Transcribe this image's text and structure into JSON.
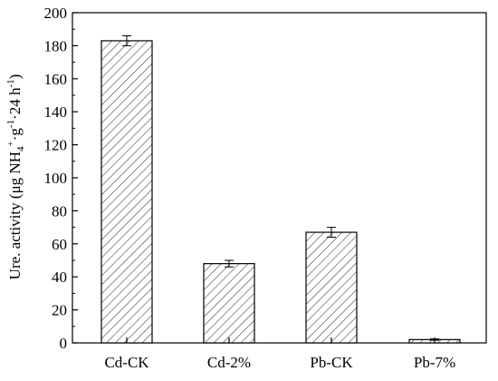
{
  "chart_data": {
    "type": "bar",
    "categories": [
      "Cd-CK",
      "Cd-2%",
      "Pb-CK",
      "Pb-7%"
    ],
    "values": [
      183,
      48,
      67,
      2
    ],
    "errors": [
      3,
      2,
      3,
      0.4
    ],
    "ylabel": "Ure. activity (μg NH4+·g-1·24 h-1)",
    "ylabel_parts": {
      "lead": "Ure. activity (μg NH",
      "sub_4": "4",
      "sup_plus": "+",
      "mid": "·g",
      "sup_neg1a": "-1",
      "mid2": "·24 h",
      "sup_neg1b": "-1",
      "tail": ")"
    },
    "ylim": [
      0,
      200
    ],
    "yticks": [
      0,
      20,
      40,
      60,
      80,
      100,
      120,
      140,
      160,
      180,
      200
    ],
    "bar_fill": "hatched",
    "grid": false,
    "colors": {
      "axis": "#000000",
      "bar_stroke": "#000000",
      "hatch": "#333333",
      "background": "#ffffff"
    }
  }
}
